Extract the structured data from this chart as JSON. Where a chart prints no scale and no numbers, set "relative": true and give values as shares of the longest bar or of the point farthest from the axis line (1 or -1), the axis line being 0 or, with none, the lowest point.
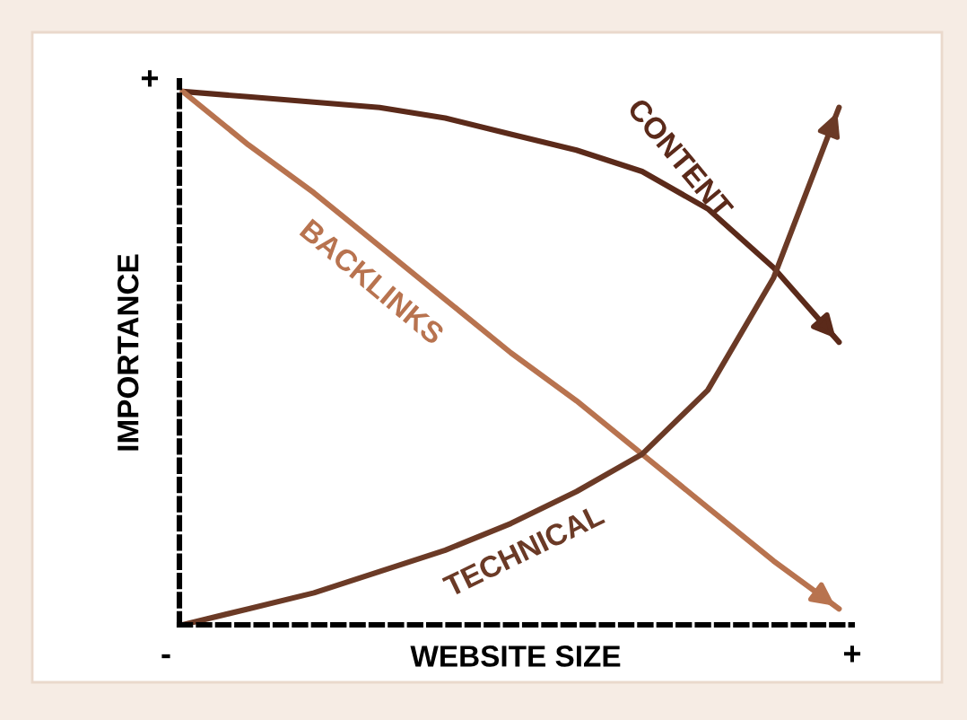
{
  "chart_data": {
    "type": "line",
    "relative": true,
    "xlabel": "WEBSITE SIZE",
    "ylabel": "IMPORTANCE",
    "categories": [
      null,
      null,
      null,
      null,
      null,
      null,
      null,
      null,
      null,
      null,
      null
    ],
    "series": [
      {
        "name": "CONTENT",
        "color": "#5b2a1a",
        "values": [
          1.0,
          0.99,
          0.98,
          0.97,
          0.95,
          0.92,
          0.89,
          0.85,
          0.78,
          0.67,
          0.53
        ]
      },
      {
        "name": "BACKLINKS",
        "color": "#b8734f",
        "values": [
          1.0,
          0.9,
          0.81,
          0.71,
          0.61,
          0.51,
          0.42,
          0.32,
          0.22,
          0.12,
          0.03
        ]
      },
      {
        "name": "TECHNICAL",
        "color": "#6b3a26",
        "values": [
          0.0,
          0.03,
          0.06,
          0.1,
          0.14,
          0.19,
          0.25,
          0.32,
          0.44,
          0.65,
          0.97
        ]
      }
    ],
    "annotations": [
      "+",
      "-",
      "+"
    ],
    "legend": false,
    "marker": "none",
    "line_style": "solid"
  }
}
